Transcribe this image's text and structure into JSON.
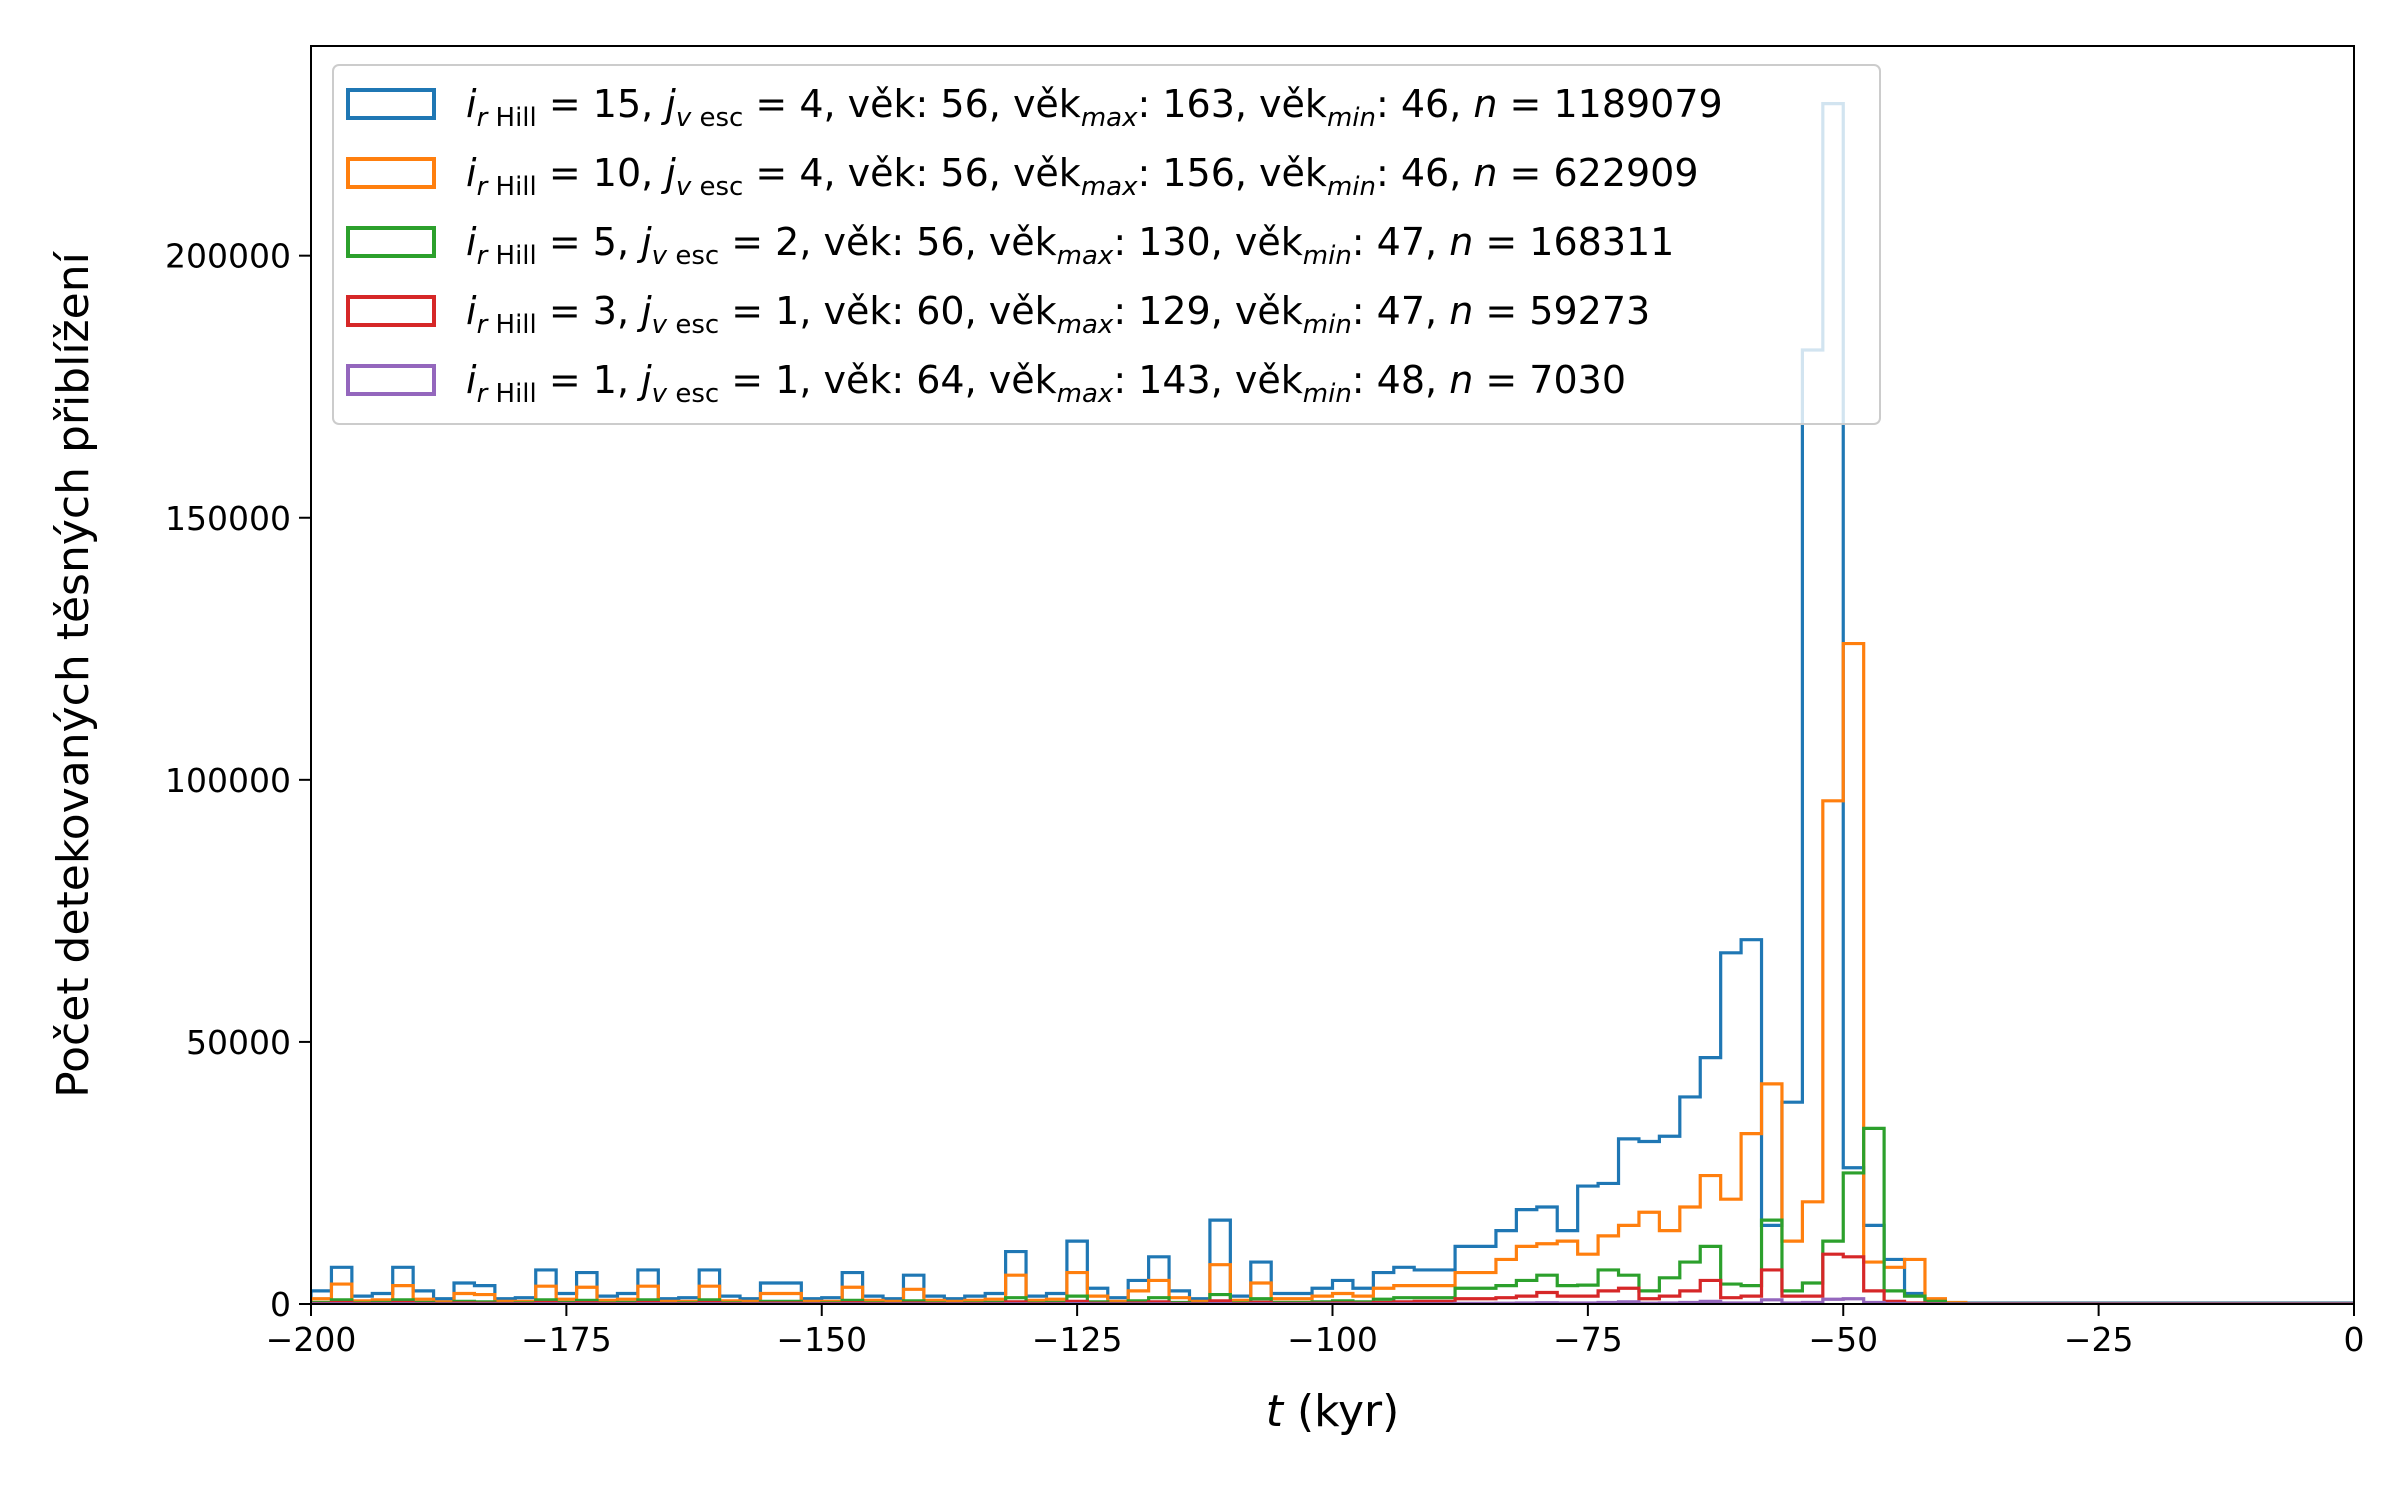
{
  "chart_data": {
    "type": "histogram",
    "xlabel_italic": "t",
    "xlabel_rest": " (kyr)",
    "ylabel": "Počet detekovaných těsných přiblížení",
    "xlim": [
      -200,
      0
    ],
    "ylim": [
      0,
      240000
    ],
    "x_ticks": [
      -200,
      -175,
      -150,
      -125,
      -100,
      -75,
      -50,
      -25,
      0
    ],
    "x_tick_labels": [
      "−200",
      "−175",
      "−150",
      "−125",
      "−100",
      "−75",
      "−50",
      "−25",
      "0"
    ],
    "y_ticks": [
      0,
      50000,
      100000,
      150000,
      200000
    ],
    "y_tick_labels": [
      "0",
      "50000",
      "100000",
      "150000",
      "200000"
    ],
    "grid": false,
    "legend_position": "upper-left",
    "bins": {
      "start": -200,
      "width": 2,
      "count": 100
    },
    "series": [
      {
        "legend": {
          "i_val": "15",
          "j_val": "4",
          "vek": "56",
          "vek_max": "163",
          "vek_min": "46",
          "n_val": "1189079"
        },
        "color": "#1f77b4",
        "values": [
          2500,
          7000,
          1500,
          2000,
          7000,
          2500,
          1000,
          4000,
          3500,
          1000,
          1200,
          6500,
          2000,
          6000,
          1500,
          2000,
          6500,
          1000,
          1200,
          6500,
          1500,
          1000,
          4000,
          4000,
          1000,
          1200,
          6000,
          1500,
          1000,
          5500,
          1500,
          1000,
          1500,
          2000,
          10000,
          1500,
          2000,
          12000,
          3000,
          1200,
          4500,
          9000,
          2500,
          1000,
          16000,
          1500,
          8000,
          2000,
          2000,
          3000,
          4500,
          3000,
          6000,
          7000,
          6500,
          6500,
          11000,
          11000,
          14000,
          18000,
          18500,
          14000,
          22500,
          23000,
          31500,
          31000,
          32000,
          39500,
          47000,
          67000,
          69500,
          15000,
          38500,
          182000,
          229000,
          26000,
          15000,
          8500,
          2000,
          400,
          200,
          200,
          200,
          200,
          200,
          200,
          200,
          200,
          200,
          200,
          200,
          200,
          200,
          200,
          200,
          200,
          200,
          200,
          200,
          200
        ]
      },
      {
        "legend": {
          "i_val": "10",
          "j_val": "4",
          "vek": "56",
          "vek_max": "156",
          "vek_min": "46",
          "n_val": "622909"
        },
        "color": "#ff7f0e",
        "values": [
          1000,
          3800,
          600,
          800,
          3500,
          900,
          400,
          2000,
          1800,
          500,
          500,
          3400,
          900,
          3200,
          700,
          900,
          3400,
          500,
          500,
          3400,
          600,
          500,
          2000,
          2000,
          500,
          500,
          3200,
          700,
          500,
          2800,
          700,
          500,
          700,
          900,
          5500,
          700,
          900,
          6000,
          1500,
          500,
          2500,
          4500,
          1200,
          500,
          7500,
          700,
          4000,
          1000,
          1000,
          1500,
          2000,
          1500,
          3000,
          3500,
          3500,
          3500,
          6000,
          6000,
          8500,
          11000,
          11500,
          12000,
          9500,
          13000,
          15000,
          17500,
          14000,
          18500,
          24500,
          20000,
          32500,
          42000,
          12000,
          19500,
          96000,
          126000,
          8000,
          7000,
          8500,
          1000,
          300,
          100,
          100,
          100,
          100,
          100,
          100,
          100,
          100,
          100,
          100,
          100,
          100,
          100,
          100,
          100,
          100,
          100,
          100,
          100
        ]
      },
      {
        "legend": {
          "i_val": "5",
          "j_val": "2",
          "vek": "56",
          "vek_max": "130",
          "vek_min": "47",
          "n_val": "168311"
        },
        "color": "#2ca02c",
        "values": [
          300,
          800,
          200,
          300,
          800,
          300,
          100,
          500,
          400,
          100,
          200,
          800,
          300,
          700,
          200,
          300,
          800,
          100,
          200,
          800,
          200,
          100,
          500,
          500,
          100,
          200,
          700,
          200,
          100,
          600,
          200,
          100,
          200,
          300,
          1200,
          200,
          300,
          1500,
          400,
          100,
          600,
          1200,
          300,
          100,
          1800,
          200,
          1000,
          300,
          300,
          400,
          600,
          400,
          900,
          1200,
          1200,
          1200,
          3000,
          3000,
          3500,
          4500,
          5500,
          3500,
          3600,
          6500,
          5500,
          2500,
          5000,
          8000,
          11000,
          3800,
          3500,
          16000,
          2500,
          4000,
          12000,
          25000,
          33500,
          2500,
          1500,
          500,
          100,
          50,
          50,
          50,
          50,
          50,
          50,
          50,
          50,
          50,
          50,
          50,
          50,
          50,
          50,
          50,
          50,
          50,
          50,
          50
        ]
      },
      {
        "legend": {
          "i_val": "3",
          "j_val": "1",
          "vek": "60",
          "vek_max": "129",
          "vek_min": "47",
          "n_val": "59273"
        },
        "color": "#d62728",
        "values": [
          100,
          300,
          80,
          100,
          300,
          100,
          50,
          200,
          150,
          50,
          80,
          300,
          100,
          250,
          80,
          100,
          300,
          50,
          80,
          300,
          80,
          50,
          200,
          200,
          50,
          80,
          250,
          80,
          50,
          200,
          80,
          50,
          80,
          100,
          400,
          80,
          100,
          500,
          150,
          50,
          200,
          400,
          100,
          50,
          600,
          80,
          350,
          100,
          100,
          150,
          200,
          150,
          300,
          400,
          500,
          500,
          1000,
          1000,
          1200,
          1500,
          2200,
          1500,
          1500,
          2500,
          3000,
          1000,
          1500,
          2500,
          4500,
          1200,
          1500,
          6500,
          1500,
          1500,
          9500,
          9000,
          2500,
          500,
          200,
          50,
          20,
          20,
          20,
          20,
          20,
          20,
          20,
          20,
          20,
          20,
          20,
          20,
          20,
          20,
          20,
          20,
          20,
          20,
          20,
          20
        ]
      },
      {
        "legend": {
          "i_val": "1",
          "j_val": "1",
          "vek": "64",
          "vek_max": "143",
          "vek_min": "48",
          "n_val": "7030"
        },
        "color": "#9467bd",
        "values": [
          20,
          50,
          10,
          20,
          50,
          20,
          10,
          30,
          20,
          10,
          10,
          50,
          20,
          40,
          10,
          20,
          50,
          10,
          10,
          50,
          10,
          10,
          30,
          30,
          10,
          10,
          40,
          10,
          10,
          30,
          10,
          10,
          10,
          20,
          60,
          10,
          20,
          70,
          20,
          10,
          30,
          60,
          20,
          10,
          80,
          10,
          50,
          20,
          20,
          20,
          30,
          20,
          40,
          50,
          60,
          60,
          120,
          120,
          150,
          200,
          250,
          200,
          200,
          300,
          400,
          150,
          200,
          300,
          500,
          200,
          200,
          800,
          200,
          300,
          900,
          1000,
          300,
          100,
          30,
          10,
          0,
          0,
          0,
          0,
          0,
          0,
          0,
          0,
          0,
          0,
          0,
          0,
          0,
          0,
          0,
          0,
          0,
          0,
          0,
          0
        ]
      }
    ]
  }
}
